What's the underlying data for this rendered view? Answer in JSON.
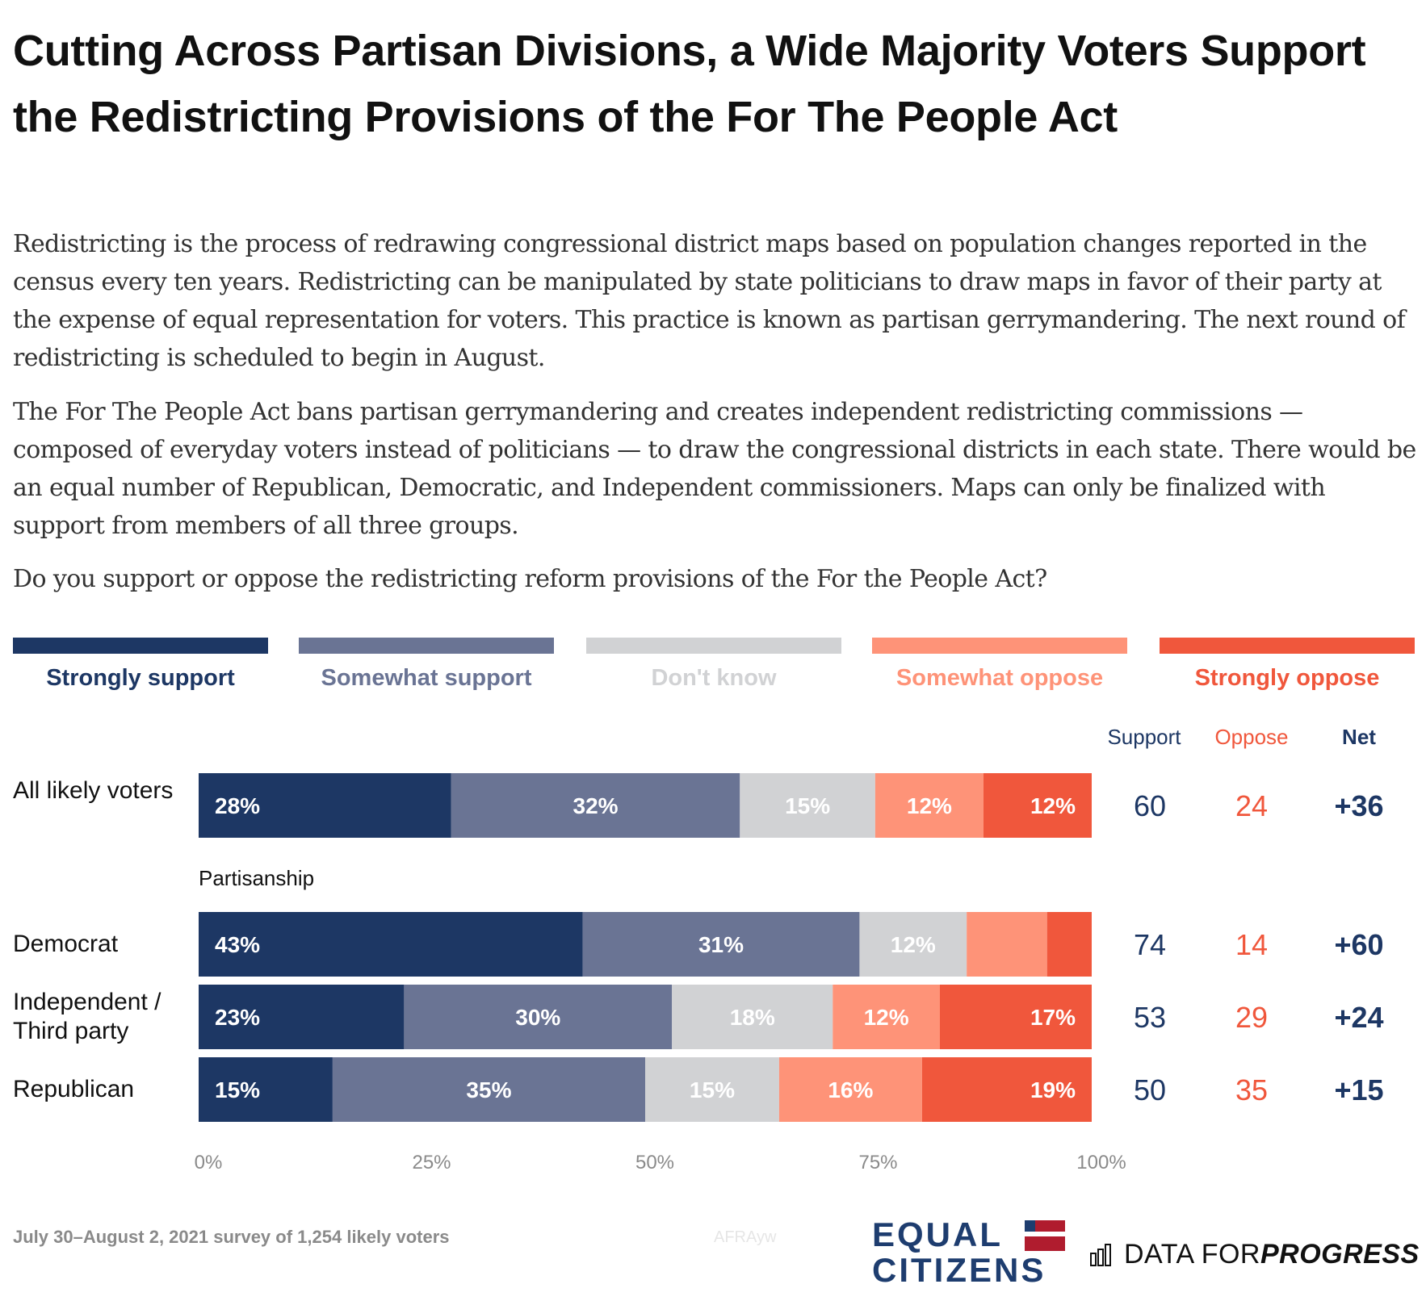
{
  "title": "Cutting Across Partisan Divisions, a Wide Majority Voters Support the Redistricting Provisions of the For The People Act",
  "paragraphs": [
    "Redistricting is the process of redrawing congressional district maps based on population changes reported in the census every ten years. Redistricting can be manipulated by state politicians to draw maps in favor of their party at the expense of equal representation for voters. This practice is known as partisan gerrymandering. The next round of redistricting is scheduled to begin in August.",
    "The For The People Act bans partisan gerrymandering and creates independent redistricting commissions — composed of everyday voters instead of politicians — to draw the congressional districts in each state. There would be an equal number of Republican, Democratic, and Independent commissioners. Maps can only be finalized with support from members of all three groups.",
    "Do you support or oppose the redistricting reform provisions of the For the People Act?"
  ],
  "colors": {
    "strongly_support": "#1d3764",
    "somewhat_support": "#6a7494",
    "dont_know": "#d1d2d4",
    "somewhat_oppose": "#fe9378",
    "strongly_oppose": "#f0573c",
    "support_text": "#1d3764",
    "oppose_text": "#f0573c",
    "axis_text": "#8a8a8a"
  },
  "legend": [
    {
      "label": "Strongly support",
      "color": "#1d3764"
    },
    {
      "label": "Somewhat support",
      "color": "#6a7494"
    },
    {
      "label": "Don't know",
      "color": "#d1d2d4"
    },
    {
      "label": "Somewhat oppose",
      "color": "#fe9378"
    },
    {
      "label": "Strongly oppose",
      "color": "#f0573c"
    }
  ],
  "columns": {
    "support": "Support",
    "oppose": "Oppose",
    "net": "Net"
  },
  "section_label": "Partisanship",
  "footer": {
    "note": "July 30–August 2, 2021 survey of 1,254 likely voters",
    "watermark": "AFRAyw",
    "logo_equal_citizens": [
      "EQUAL",
      "CITIZENS"
    ],
    "logo_dfp_regular": "DATA FOR ",
    "logo_dfp_bold": "PROGRESS"
  },
  "chart_data": {
    "type": "bar",
    "orientation": "horizontal-stacked",
    "title": "Cutting Across Partisan Divisions, a Wide Majority Voters Support the Redistricting Provisions of the For The People Act",
    "xlabel": "",
    "ylabel": "",
    "xlim": [
      0,
      100
    ],
    "x_ticks": [
      "0%",
      "25%",
      "50%",
      "75%",
      "100%"
    ],
    "grid": false,
    "legend_position": "top",
    "categories": [
      "All likely voters",
      "Democrat",
      "Independent / Third party",
      "Republican"
    ],
    "series": [
      {
        "name": "Strongly support",
        "values": [
          28,
          43,
          23,
          15
        ],
        "labels": [
          "28%",
          "43%",
          "23%",
          "15%"
        ]
      },
      {
        "name": "Somewhat support",
        "values": [
          32,
          31,
          30,
          35
        ],
        "labels": [
          "32%",
          "31%",
          "30%",
          "35%"
        ]
      },
      {
        "name": "Don't know",
        "values": [
          15,
          12,
          18,
          15
        ],
        "labels": [
          "15%",
          "12%",
          "18%",
          "15%"
        ]
      },
      {
        "name": "Somewhat oppose",
        "values": [
          12,
          9,
          12,
          16
        ],
        "labels": [
          "12%",
          "",
          "12%",
          "16%"
        ]
      },
      {
        "name": "Strongly oppose",
        "values": [
          12,
          5,
          17,
          19
        ],
        "labels": [
          "12%",
          "",
          "17%",
          "19%"
        ]
      }
    ],
    "summary": [
      {
        "group": "All likely voters",
        "support": "60",
        "oppose": "24",
        "net": "+36"
      },
      {
        "group": "Democrat",
        "support": "74",
        "oppose": "14",
        "net": "+60"
      },
      {
        "group": "Independent / Third party",
        "support": "53",
        "oppose": "29",
        "net": "+24"
      },
      {
        "group": "Republican",
        "support": "50",
        "oppose": "35",
        "net": "+15"
      }
    ]
  }
}
